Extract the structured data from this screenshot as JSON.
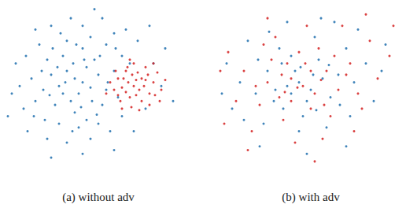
{
  "chart_data": [
    {
      "type": "scatter",
      "title": "(a) without adv",
      "xlim": [
        0,
        230
      ],
      "ylim": [
        0,
        230
      ],
      "tick_labels": false,
      "grid": false,
      "series": [
        {
          "color": "#1f6fae",
          "values": [
            [
              100,
              125
            ],
            [
              90,
              130
            ],
            [
              110,
              118
            ],
            [
              80,
              140
            ],
            [
              120,
              135
            ],
            [
              95,
              110
            ],
            [
              105,
              145
            ],
            [
              70,
              120
            ],
            [
              130,
              115
            ],
            [
              85,
              100
            ],
            [
              115,
              155
            ],
            [
              60,
              135
            ],
            [
              140,
              140
            ],
            [
              75,
              160
            ],
            [
              125,
              95
            ],
            [
              50,
              115
            ],
            [
              100,
              170
            ],
            [
              90,
              85
            ],
            [
              145,
              105
            ],
            [
              65,
              95
            ],
            [
              35,
              130
            ],
            [
              110,
              185
            ],
            [
              80,
              180
            ],
            [
              55,
              155
            ],
            [
              150,
              160
            ],
            [
              40,
              100
            ],
            [
              130,
              175
            ],
            [
              95,
              65
            ],
            [
              20,
              120
            ],
            [
              70,
              70
            ],
            [
              120,
              70
            ],
            [
              160,
              150
            ],
            [
              45,
              175
            ],
            [
              100,
              200
            ],
            [
              25,
              90
            ],
            [
              140,
              190
            ],
            [
              60,
              200
            ],
            [
              15,
              150
            ],
            [
              110,
              50
            ],
            [
              80,
              45
            ],
            [
              170,
              180
            ],
            [
              30,
              60
            ],
            [
              135,
              60
            ],
            [
              190,
              150
            ],
            [
              10,
              110
            ],
            [
              55,
              50
            ],
            [
              150,
              80
            ],
            [
              180,
              90
            ],
            [
              200,
              120
            ],
            [
              85,
              210
            ],
            [
              125,
              210
            ],
            [
              40,
              195
            ],
            [
              165,
              60
            ],
            [
              100,
              30
            ],
            [
              60,
              25
            ],
            [
              140,
              35
            ],
            [
              205,
              170
            ],
            [
              215,
              100
            ],
            [
              5,
              80
            ],
            [
              185,
              200
            ],
            [
              75,
              110
            ],
            [
              88,
              150
            ],
            [
              112,
              100
            ],
            [
              68,
              145
            ],
            [
              132,
              125
            ],
            [
              58,
              108
            ],
            [
              98,
              92
            ],
            [
              122,
              160
            ],
            [
              78,
              125
            ],
            [
              102,
              155
            ],
            [
              48,
              140
            ],
            [
              92,
              175
            ],
            [
              118,
              82
            ],
            [
              62,
              170
            ],
            [
              38,
              80
            ],
            [
              142,
              170
            ],
            [
              87,
              60
            ],
            [
              105,
              75
            ],
            [
              52,
              75
            ],
            [
              28,
              160
            ],
            [
              155,
              195
            ],
            [
              72,
              190
            ],
            [
              115,
              222
            ]
          ]
        },
        {
          "color": "#d42020",
          "values": [
            [
              165,
              120
            ],
            [
              158,
              125
            ],
            [
              172,
              115
            ],
            [
              150,
              118
            ],
            [
              180,
              128
            ],
            [
              160,
              105
            ],
            [
              170,
              138
            ],
            [
              145,
              130
            ],
            [
              185,
              110
            ],
            [
              155,
              140
            ],
            [
              175,
              100
            ],
            [
              190,
              125
            ],
            [
              140,
              115
            ],
            [
              165,
              150
            ],
            [
              162,
              92
            ],
            [
              195,
              138
            ],
            [
              148,
              100
            ],
            [
              180,
              145
            ],
            [
              200,
              115
            ],
            [
              135,
              125
            ],
            [
              168,
              128
            ],
            [
              155,
              112
            ],
            [
              178,
              120
            ],
            [
              163,
              135
            ],
            [
              152,
              130
            ],
            [
              185,
              95
            ],
            [
              142,
              140
            ],
            [
              172,
              88
            ],
            [
              198,
              100
            ],
            [
              130,
              110
            ],
            [
              190,
              150
            ],
            [
              160,
              155
            ],
            [
              175,
              130
            ],
            [
              150,
              90
            ],
            [
              205,
              128
            ],
            [
              168,
              108
            ],
            [
              183,
              135
            ],
            [
              157,
              145
            ],
            [
              145,
              108
            ],
            [
              192,
              108
            ]
          ]
        }
      ]
    },
    {
      "type": "scatter",
      "title": "(b) with adv",
      "xlim": [
        0,
        240
      ],
      "ylim": [
        0,
        230
      ],
      "tick_labels": false,
      "grid": false,
      "series": [
        {
          "color": "#d42020",
          "values": [
            [
              115,
              120
            ],
            [
              100,
              130
            ],
            [
              130,
              110
            ],
            [
              85,
              105
            ],
            [
              145,
              140
            ],
            [
              95,
              150
            ],
            [
              125,
              90
            ],
            [
              70,
              125
            ],
            [
              160,
              115
            ],
            [
              110,
              165
            ],
            [
              135,
              170
            ],
            [
              60,
              95
            ],
            [
              175,
              150
            ],
            [
              90,
              75
            ],
            [
              150,
              80
            ],
            [
              40,
              140
            ],
            [
              120,
              200
            ],
            [
              80,
              185
            ],
            [
              185,
              110
            ],
            [
              50,
              60
            ],
            [
              200,
              180
            ],
            [
              30,
              100
            ],
            [
              165,
              200
            ],
            [
              105,
              45
            ],
            [
              210,
              130
            ],
            [
              20,
              165
            ],
            [
              140,
              50
            ],
            [
              70,
              210
            ],
            [
              225,
              160
            ],
            [
              15,
              70
            ],
            [
              180,
              60
            ],
            [
              100,
              100
            ],
            [
              125,
              140
            ],
            [
              75,
              155
            ],
            [
              155,
              160
            ],
            [
              108,
              118
            ],
            [
              138,
              128
            ],
            [
              88,
              135
            ],
            [
              118,
              150
            ],
            [
              92,
              112
            ],
            [
              142,
              95
            ],
            [
              65,
              175
            ],
            [
              190,
              90
            ],
            [
              45,
              35
            ],
            [
              230,
              200
            ],
            [
              10,
              140
            ],
            [
              130,
              20
            ],
            [
              195,
              215
            ],
            [
              55,
              120
            ],
            [
              170,
              135
            ]
          ]
        },
        {
          "color": "#1f6fae",
          "values": [
            [
              110,
              125
            ],
            [
              125,
              115
            ],
            [
              95,
              120
            ],
            [
              140,
              130
            ],
            [
              105,
              140
            ],
            [
              120,
              100
            ],
            [
              80,
              115
            ],
            [
              150,
              105
            ],
            [
              100,
              160
            ],
            [
              135,
              155
            ],
            [
              70,
              140
            ],
            [
              160,
              135
            ],
            [
              115,
              80
            ],
            [
              90,
              90
            ],
            [
              170,
              170
            ],
            [
              55,
              110
            ],
            [
              130,
              185
            ],
            [
              85,
              170
            ],
            [
              180,
              125
            ],
            [
              65,
              70
            ],
            [
              145,
              65
            ],
            [
              35,
              125
            ],
            [
              110,
              60
            ],
            [
              195,
              150
            ],
            [
              25,
              90
            ],
            [
              155,
              205
            ],
            [
              95,
              205
            ],
            [
              205,
              100
            ],
            [
              45,
              180
            ],
            [
              175,
              80
            ],
            [
              120,
              30
            ],
            [
              60,
              40
            ],
            [
              215,
              140
            ],
            [
              18,
              150
            ],
            [
              185,
              195
            ],
            [
              100,
              110
            ],
            [
              128,
              135
            ],
            [
              78,
              100
            ],
            [
              148,
              148
            ],
            [
              112,
              145
            ],
            [
              132,
              88
            ],
            [
              88,
              150
            ],
            [
              162,
              95
            ],
            [
              72,
              192
            ],
            [
              40,
              75
            ],
            [
              220,
              175
            ],
            [
              12,
              110
            ],
            [
              170,
              40
            ],
            [
              138,
              210
            ],
            [
              58,
              155
            ]
          ]
        }
      ]
    }
  ]
}
